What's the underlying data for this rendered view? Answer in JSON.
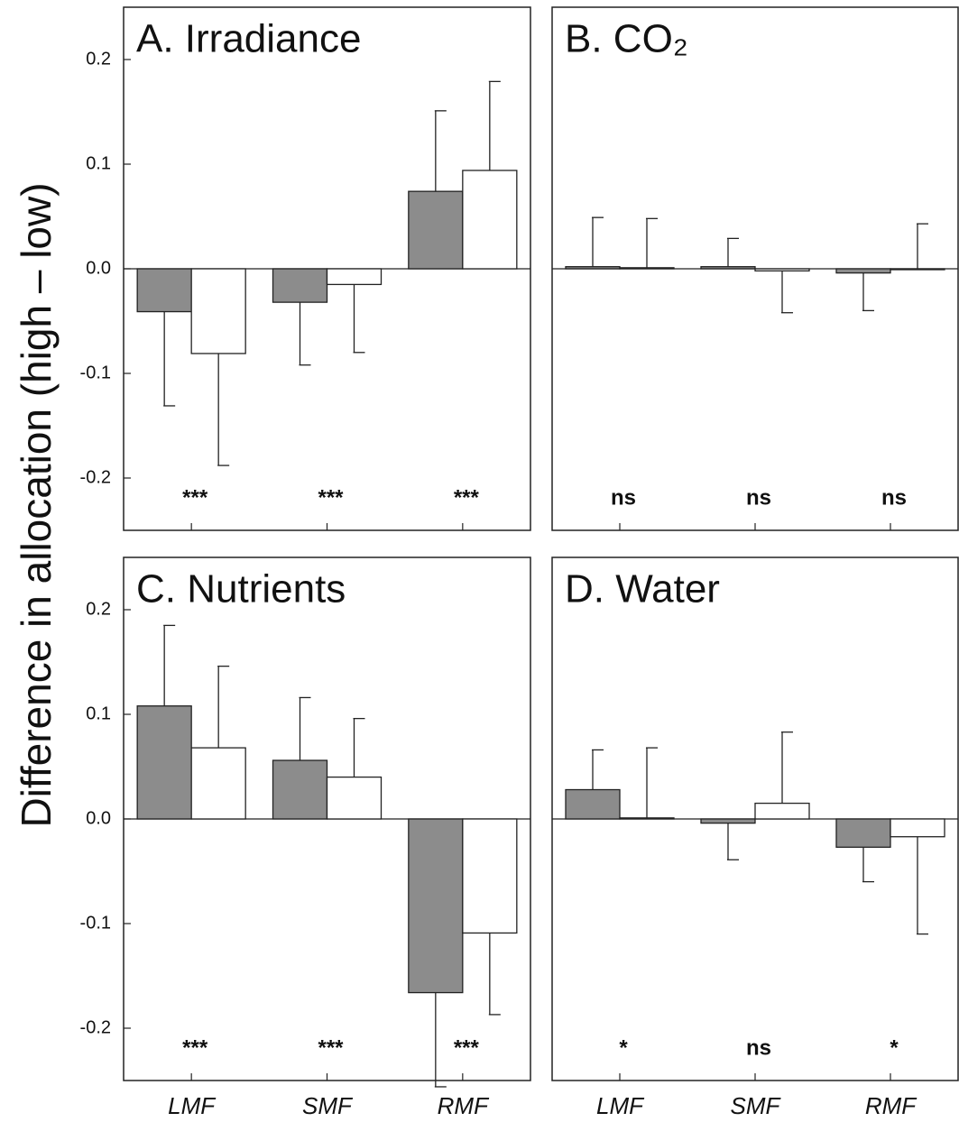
{
  "chart_data": [
    {
      "type": "bar",
      "title": "A. Irradiance",
      "ylabel": "Difference in allocation (high – low)",
      "ylim": [
        -0.25,
        0.25
      ],
      "yticks": [
        -0.2,
        -0.1,
        {
          "value": 0,
          "label": "0.0"
        },
        0.1,
        0.2
      ],
      "series": [
        {
          "color": "#8c8c8c",
          "values": [
            -0.041,
            -0.032,
            0.074
          ],
          "errors": [
            0.09,
            0.06,
            0.077
          ]
        },
        {
          "color": "#ffffff",
          "values": [
            -0.081,
            -0.015,
            0.094
          ],
          "errors": [
            0.107,
            0.065,
            0.085
          ]
        }
      ],
      "annotations": [
        "***",
        "***",
        "***"
      ]
    },
    {
      "type": "bar",
      "title": "B. CO₂",
      "ylim": [
        -0.25,
        0.25
      ],
      "series": [
        {
          "color": "#8c8c8c",
          "values": [
            0.002,
            0.002,
            -0.004
          ],
          "errors": [
            0.047,
            0.027,
            0.036
          ]
        },
        {
          "color": "#ffffff",
          "values": [
            0.001,
            -0.002,
            0
          ],
          "errors": [
            0.047,
            0.04,
            0.043
          ]
        }
      ],
      "annotations": [
        "ns",
        "ns",
        "ns"
      ]
    },
    {
      "type": "bar",
      "title": "C. Nutrients",
      "ylim": [
        -0.25,
        0.25
      ],
      "yticks": [
        -0.2,
        -0.1,
        {
          "value": 0,
          "label": "0.0"
        },
        0.1,
        0.2
      ],
      "categories": [
        "LMF",
        "SMF",
        "RMF"
      ],
      "series": [
        {
          "color": "#8c8c8c",
          "values": [
            0.108,
            0.056,
            -0.166
          ],
          "errors": [
            0.077,
            0.06,
            0.09
          ]
        },
        {
          "color": "#ffffff",
          "values": [
            0.068,
            0.04,
            -0.109
          ],
          "errors": [
            0.078,
            0.056,
            0.078
          ]
        }
      ],
      "annotations": [
        "***",
        "***",
        "***"
      ]
    },
    {
      "type": "bar",
      "title": "D. Water",
      "ylim": [
        -0.25,
        0.25
      ],
      "categories": [
        "LMF",
        "SMF",
        "RMF"
      ],
      "series": [
        {
          "color": "#8c8c8c",
          "values": [
            0.028,
            -0.004,
            -0.027
          ],
          "errors": [
            0.038,
            0.035,
            0.033
          ]
        },
        {
          "color": "#ffffff",
          "values": [
            0.001,
            0.015,
            -0.017
          ],
          "errors": [
            0.067,
            0.068,
            0.093
          ]
        }
      ],
      "annotations": [
        "*",
        "ns",
        "*"
      ]
    }
  ]
}
